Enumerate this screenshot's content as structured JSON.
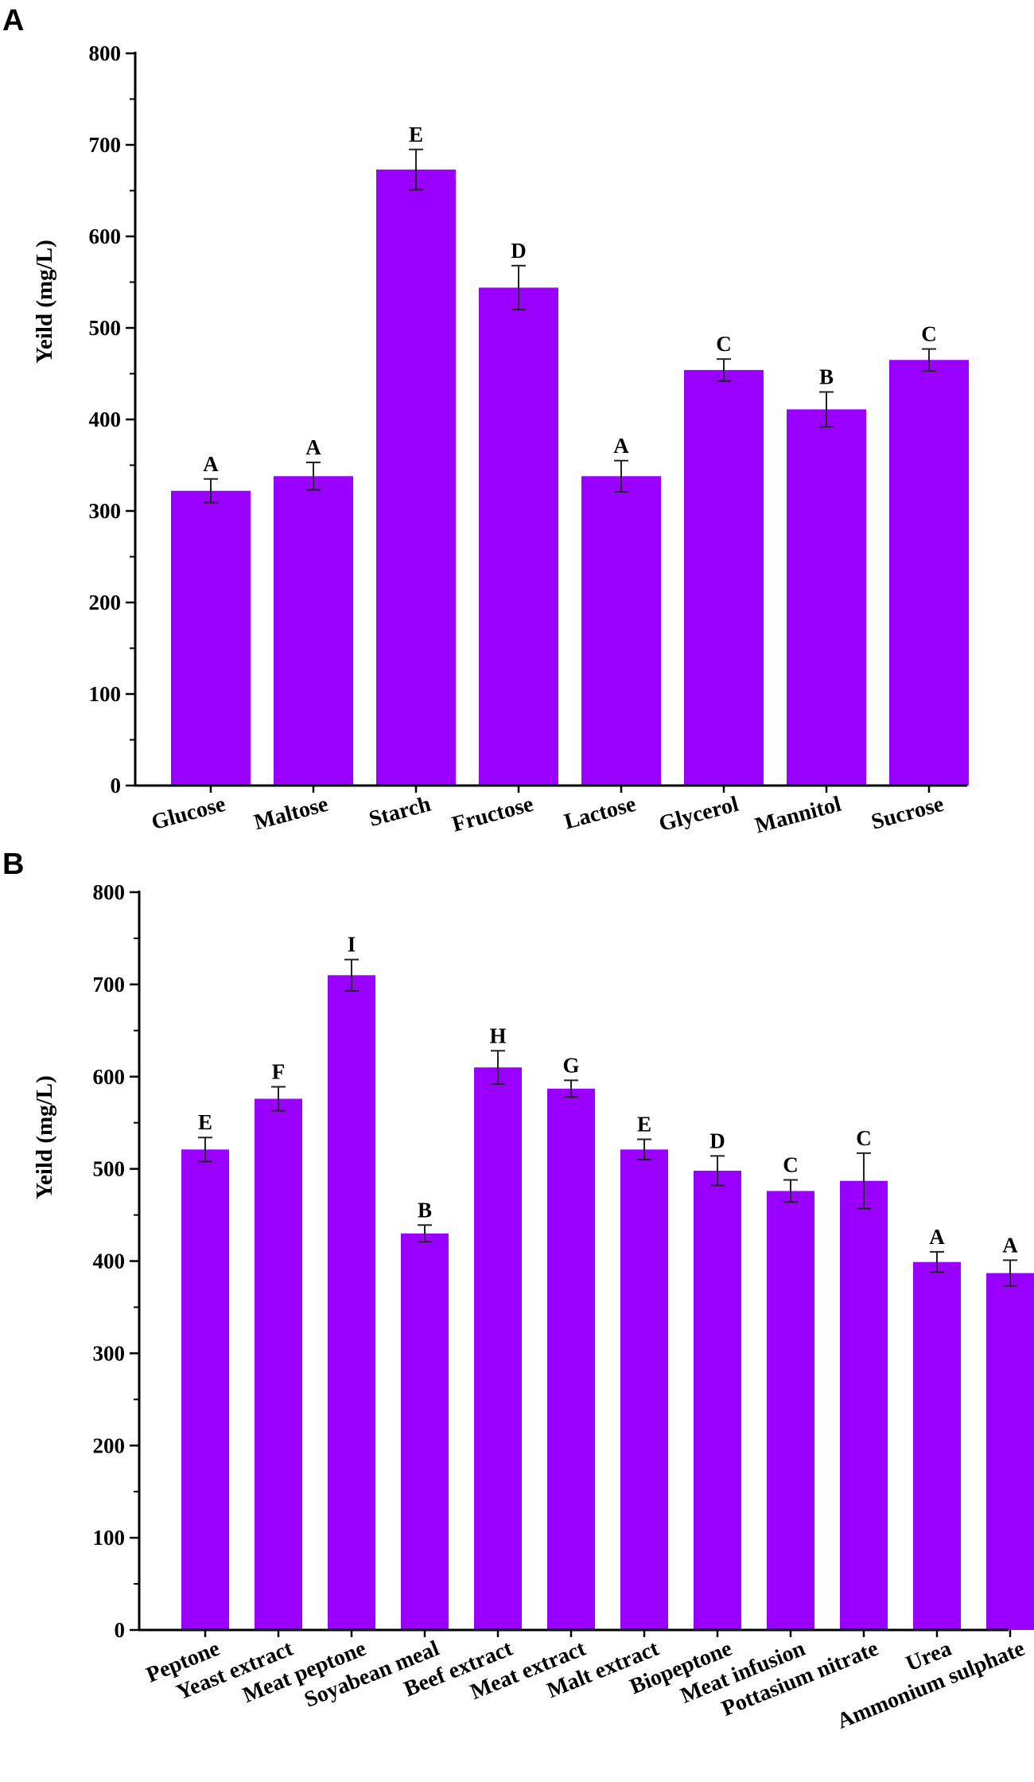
{
  "chart_data": [
    {
      "panel": "A",
      "type": "bar",
      "title": "",
      "xlabel": "",
      "ylabel": "Yeild (mg/L)",
      "ylim": [
        0,
        800
      ],
      "yticks": [
        0,
        100,
        200,
        300,
        400,
        500,
        600,
        700,
        800
      ],
      "ytick_labels": [
        "0",
        "100",
        "200",
        "300",
        "400",
        "500",
        "600",
        "700",
        "800"
      ],
      "grid": false,
      "color": "#9a00ff",
      "categories": [
        "Glucose",
        "Maltose",
        "Starch",
        "Fructose",
        "Lactose",
        "Glycerol",
        "Mannitol",
        "Sucrose"
      ],
      "values": [
        322,
        338,
        673,
        544,
        338,
        454,
        411,
        465
      ],
      "errors": [
        13,
        15,
        22,
        24,
        17,
        12,
        19,
        12
      ],
      "significance": [
        "A",
        "A",
        "E",
        "D",
        "A",
        "C",
        "B",
        "C"
      ]
    },
    {
      "panel": "B",
      "type": "bar",
      "title": "",
      "xlabel": "",
      "ylabel": "Yeild (mg/L)",
      "ylim": [
        0,
        800
      ],
      "yticks": [
        0,
        100,
        200,
        300,
        400,
        500,
        600,
        700,
        800
      ],
      "ytick_labels": [
        "0",
        "100",
        "200",
        "300",
        "400",
        "500",
        "600",
        "700",
        "800"
      ],
      "grid": false,
      "color": "#9a00ff",
      "categories": [
        "Peptone",
        "Yeast extract",
        "Meat peptone",
        "Soyabean meal",
        "Beef extract",
        "Meat extract",
        "Malt extract",
        "Biopeptone",
        "Meat infusion",
        "Pottasium nitrate",
        "Urea",
        "Ammonium sulphate"
      ],
      "values": [
        521,
        576,
        710,
        430,
        610,
        587,
        521,
        498,
        476,
        487,
        399,
        387
      ],
      "errors": [
        13,
        13,
        17,
        9,
        18,
        9,
        11,
        16,
        12,
        30,
        11,
        14
      ],
      "significance": [
        "E",
        "F",
        "I",
        "B",
        "H",
        "G",
        "E",
        "D",
        "C",
        "C",
        "A",
        "A"
      ]
    }
  ]
}
